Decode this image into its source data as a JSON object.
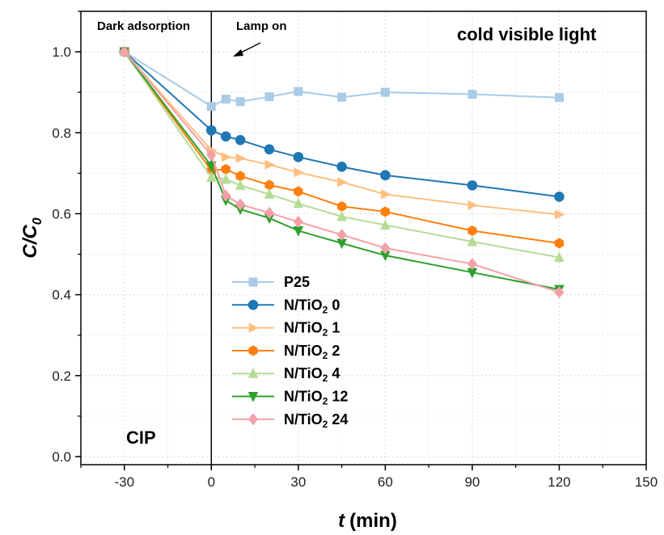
{
  "chart_data": {
    "type": "line",
    "title": "",
    "xlabel": {
      "symbol": "t",
      "unit": "(min)"
    },
    "ylabel": {
      "main": "C/C",
      "sub": "0"
    },
    "xlim": [
      -45,
      150
    ],
    "ylim": [
      -0.02,
      1.1
    ],
    "xticks": [
      -30,
      0,
      30,
      60,
      90,
      120,
      150
    ],
    "yticks": [
      0.0,
      0.2,
      0.4,
      0.6,
      0.8,
      1.0
    ],
    "xtick_labels": [
      "-30",
      "0",
      "30",
      "60",
      "90",
      "120",
      "150"
    ],
    "ytick_labels": [
      "0.0",
      "0.2",
      "0.4",
      "0.6",
      "0.8",
      "1.0"
    ],
    "grid": true,
    "legend_position": "bottom-center",
    "annotations": {
      "dark": "Dark adsorption",
      "lamp": "Lamp on",
      "light": "cold visible light",
      "compound": "CIP"
    },
    "series": [
      {
        "name": "P25",
        "legend_main": "P25",
        "legend_sub": "",
        "legend_suffix": "",
        "color": "#a9cbe6",
        "marker": "square",
        "x": [
          -30,
          0,
          5,
          10,
          20,
          30,
          45,
          60,
          90,
          120
        ],
        "y": [
          1.0,
          0.865,
          0.883,
          0.877,
          0.889,
          0.902,
          0.888,
          0.9,
          0.895,
          0.887
        ]
      },
      {
        "name": "N/TiO2 0",
        "legend_main": "N/TiO",
        "legend_sub": "2",
        "legend_suffix": " 0",
        "color": "#1f77b4",
        "marker": "circle",
        "x": [
          -30,
          0,
          5,
          10,
          20,
          30,
          45,
          60,
          90,
          120
        ],
        "y": [
          1.0,
          0.806,
          0.791,
          0.782,
          0.759,
          0.74,
          0.716,
          0.695,
          0.67,
          0.642
        ]
      },
      {
        "name": "N/TiO2 1",
        "legend_main": "N/TiO",
        "legend_sub": "2",
        "legend_suffix": " 1",
        "color": "#ffbf80",
        "marker": "triangle-right",
        "x": [
          -30,
          0,
          5,
          10,
          20,
          30,
          45,
          60,
          90,
          120
        ],
        "y": [
          1.0,
          0.757,
          0.74,
          0.737,
          0.721,
          0.702,
          0.678,
          0.648,
          0.621,
          0.598
        ]
      },
      {
        "name": "N/TiO2 2",
        "legend_main": "N/TiO",
        "legend_sub": "2",
        "legend_suffix": " 2",
        "color": "#ff7f0e",
        "marker": "hexagon",
        "x": [
          -30,
          0,
          5,
          10,
          20,
          30,
          45,
          60,
          90,
          120
        ],
        "y": [
          1.0,
          0.707,
          0.71,
          0.693,
          0.671,
          0.655,
          0.618,
          0.605,
          0.558,
          0.527
        ]
      },
      {
        "name": "N/TiO2 4",
        "legend_main": "N/TiO",
        "legend_sub": "2",
        "legend_suffix": " 4",
        "color": "#b5dc96",
        "marker": "triangle-up",
        "x": [
          -30,
          0,
          5,
          10,
          20,
          30,
          45,
          60,
          90,
          120
        ],
        "y": [
          1.0,
          0.69,
          0.685,
          0.67,
          0.648,
          0.625,
          0.593,
          0.572,
          0.531,
          0.492
        ]
      },
      {
        "name": "N/TiO2 12",
        "legend_main": "N/TiO",
        "legend_sub": "2",
        "legend_suffix": " 12",
        "color": "#2ca02c",
        "marker": "triangle-down",
        "x": [
          -30,
          0,
          5,
          10,
          20,
          30,
          45,
          60,
          90,
          120
        ],
        "y": [
          1.0,
          0.718,
          0.633,
          0.611,
          0.589,
          0.558,
          0.527,
          0.497,
          0.455,
          0.413
        ]
      },
      {
        "name": "N/TiO2 24",
        "legend_main": "N/TiO",
        "legend_sub": "2",
        "legend_suffix": " 24",
        "color": "#f4a0a8",
        "marker": "diamond",
        "x": [
          -30,
          0,
          5,
          10,
          20,
          30,
          45,
          60,
          90,
          120
        ],
        "y": [
          1.0,
          0.745,
          0.645,
          0.623,
          0.602,
          0.58,
          0.548,
          0.515,
          0.476,
          0.406
        ]
      }
    ]
  }
}
